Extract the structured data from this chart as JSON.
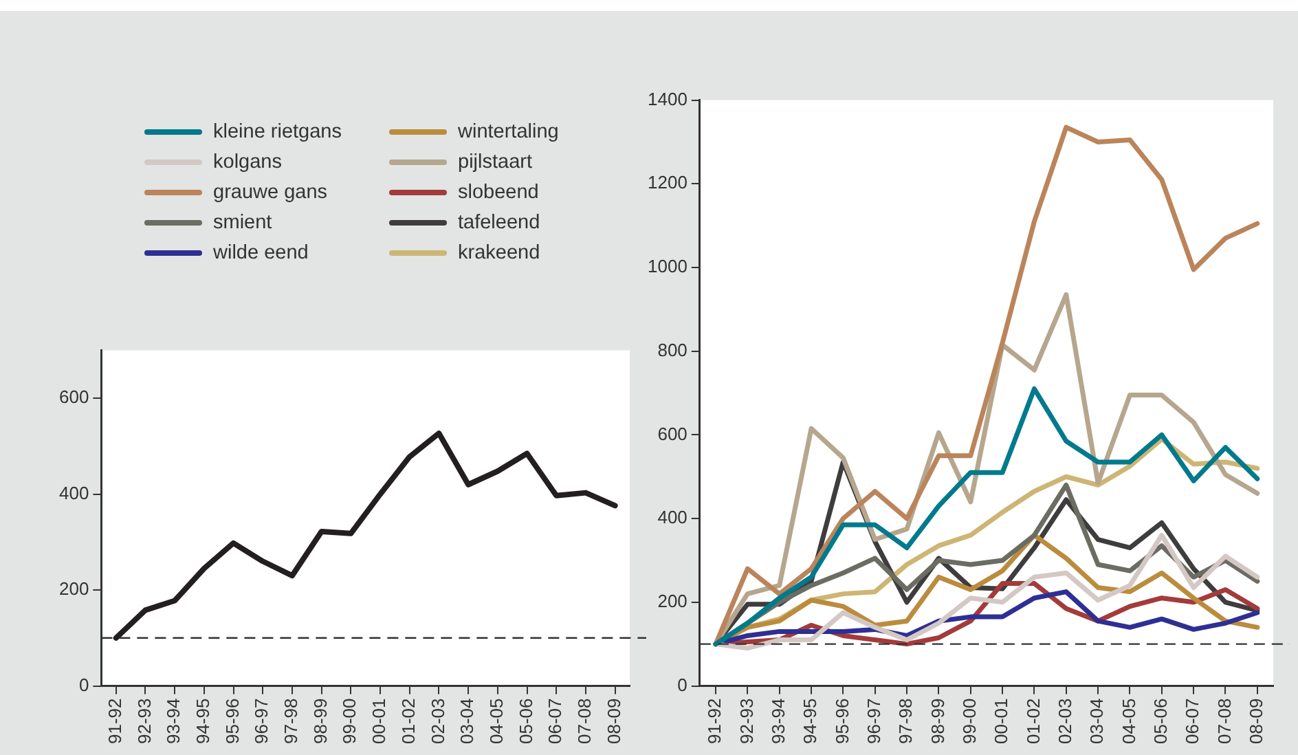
{
  "chart_data": [
    {
      "type": "line",
      "categories": [
        "91-92",
        "92-93",
        "93-94",
        "94-95",
        "95-96",
        "96-97",
        "97-98",
        "98-99",
        "99-00",
        "00-01",
        "01-02",
        "02-03",
        "03-04",
        "04-05",
        "05-06",
        "06-07",
        "07-08",
        "08-09"
      ],
      "series": [
        {
          "color": "#231f20",
          "values": [
            100,
            158,
            178,
            245,
            298,
            260,
            230,
            322,
            318,
            400,
            478,
            527,
            420,
            448,
            485,
            397,
            403,
            376
          ]
        }
      ],
      "ylim": [
        0,
        700
      ],
      "yticks": [
        0,
        200,
        400,
        600
      ],
      "grid": false,
      "legend": false,
      "ref_lines": [
        {
          "axis": "y",
          "value": 100,
          "line_style": "dashed",
          "color": "#333333"
        }
      ]
    },
    {
      "type": "line",
      "categories": [
        "91-92",
        "92-93",
        "93-94",
        "94-95",
        "95-96",
        "96-97",
        "97-98",
        "98-99",
        "99-00",
        "00-01",
        "01-02",
        "02-03",
        "03-04",
        "04-05",
        "05-06",
        "06-07",
        "07-08",
        "08-09"
      ],
      "series": [
        {
          "name": "kleine rietgans",
          "color": "#007a8c",
          "values": [
            100,
            150,
            210,
            260,
            385,
            385,
            330,
            430,
            510,
            510,
            710,
            585,
            535,
            535,
            600,
            490,
            570,
            495
          ]
        },
        {
          "name": "kolgans",
          "color": "#d4c8c4",
          "values": [
            100,
            90,
            110,
            110,
            175,
            140,
            110,
            150,
            210,
            200,
            260,
            270,
            205,
            240,
            360,
            235,
            310,
            260
          ]
        },
        {
          "name": "grauwe gans",
          "color": "#bb845a",
          "values": [
            100,
            280,
            220,
            280,
            400,
            465,
            400,
            550,
            550,
            820,
            1110,
            1335,
            1300,
            1305,
            1210,
            995,
            1070,
            1105
          ]
        },
        {
          "name": "smient",
          "color": "#6b6c62",
          "values": [
            100,
            150,
            200,
            240,
            270,
            305,
            230,
            300,
            290,
            300,
            360,
            480,
            290,
            275,
            335,
            260,
            300,
            250
          ]
        },
        {
          "name": "wilde eend",
          "color": "#2e2f94",
          "values": [
            100,
            120,
            130,
            130,
            130,
            135,
            120,
            155,
            165,
            165,
            210,
            225,
            155,
            140,
            160,
            135,
            150,
            175
          ]
        },
        {
          "name": "wintertaling",
          "color": "#bb8c3e",
          "values": [
            100,
            140,
            155,
            205,
            190,
            145,
            155,
            260,
            230,
            275,
            360,
            305,
            235,
            225,
            270,
            210,
            155,
            140
          ]
        },
        {
          "name": "pijlstaart",
          "color": "#b6a68e",
          "values": [
            100,
            220,
            240,
            615,
            545,
            350,
            375,
            605,
            440,
            815,
            755,
            935,
            485,
            695,
            695,
            630,
            505,
            460
          ]
        },
        {
          "name": "slobeend",
          "color": "#a33b3a",
          "values": [
            100,
            105,
            110,
            145,
            120,
            110,
            100,
            115,
            155,
            245,
            245,
            185,
            155,
            190,
            210,
            200,
            230,
            185
          ]
        },
        {
          "name": "tafeleend",
          "color": "#3f3c3d",
          "values": [
            100,
            195,
            195,
            250,
            535,
            345,
            200,
            305,
            235,
            232,
            330,
            445,
            350,
            330,
            390,
            280,
            200,
            180
          ]
        },
        {
          "name": "krakeend",
          "color": "#cdb574",
          "values": [
            100,
            140,
            160,
            205,
            220,
            225,
            290,
            335,
            360,
            415,
            465,
            500,
            480,
            525,
            590,
            530,
            535,
            520
          ]
        }
      ],
      "ylim": [
        0,
        1400
      ],
      "yticks": [
        0,
        200,
        400,
        600,
        800,
        1000,
        1200,
        1400
      ],
      "grid": false,
      "legend": "top left",
      "ref_lines": [
        {
          "axis": "y",
          "value": 100,
          "line_style": "dashed",
          "color": "#333333"
        }
      ]
    }
  ]
}
